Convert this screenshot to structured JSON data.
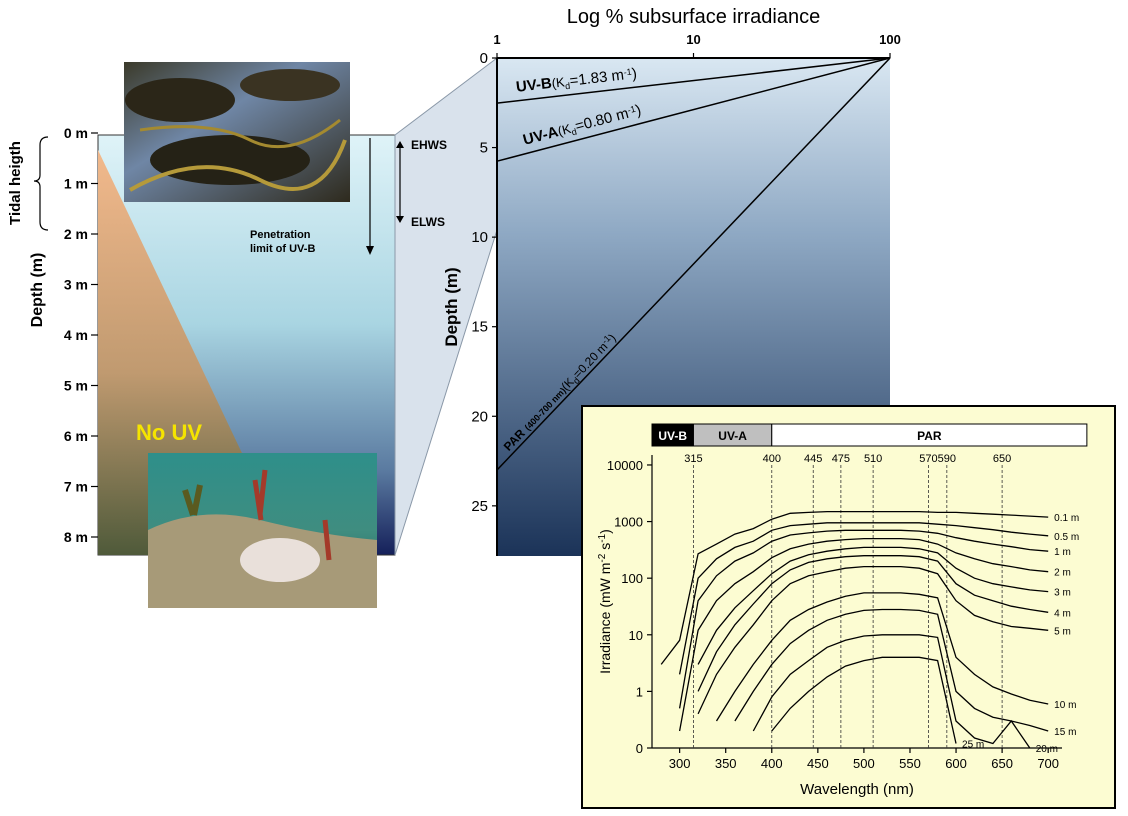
{
  "diagram": {
    "tidal_label": "Tidal heigth",
    "depth_label": "Depth (m)",
    "depth_ticks": [
      {
        "value": 0,
        "label": "0 m"
      },
      {
        "value": 1,
        "label": "1 m"
      },
      {
        "value": 2,
        "label": "2 m"
      },
      {
        "value": 3,
        "label": "3 m"
      },
      {
        "value": 4,
        "label": "4 m"
      },
      {
        "value": 5,
        "label": "5 m"
      },
      {
        "value": 6,
        "label": "6 m"
      },
      {
        "value": 7,
        "label": "7 m"
      },
      {
        "value": 8,
        "label": "8 m"
      }
    ],
    "ehws": "EHWS",
    "elws": "ELWS",
    "uvb_limit": [
      "Penetration",
      "limit of UV-B"
    ],
    "no_uv": "No UV"
  },
  "chart_data": [
    {
      "type": "line",
      "title": "Log % subsurface irradiance",
      "ylabel": "Depth (m)",
      "x_log": true,
      "x_axis_position": "top",
      "y_inverted": true,
      "x": [
        1,
        100
      ],
      "xlim": [
        1,
        100
      ],
      "xticks": [
        1,
        10,
        100
      ],
      "ylim": [
        0,
        27.8
      ],
      "yticks": [
        0,
        5,
        10,
        15,
        20,
        25
      ],
      "series": [
        {
          "name": "UV-B",
          "color": "#000000",
          "values": [
            2.52,
            0
          ],
          "label_parts": [
            "(K",
            "d",
            "=1.83 m",
            "-1",
            ")"
          ]
        },
        {
          "name": "UV-A",
          "color": "#000000",
          "values": [
            5.76,
            0
          ],
          "label_parts": [
            "(K",
            "d",
            "=0.80 m",
            "-1",
            ")"
          ]
        },
        {
          "name": "PAR",
          "color": "#000000",
          "values": [
            23,
            0
          ],
          "band_note": "(400-700 nm)",
          "label_parts": [
            "(K",
            "d",
            "=0.20 m",
            "-1",
            ")"
          ]
        }
      ]
    },
    {
      "type": "line",
      "xlabel": "Wavelength (nm)",
      "ylabel_parts": [
        "Irradiance (mW m",
        "-2",
        " s",
        "-1",
        ")"
      ],
      "y_log": true,
      "x": [
        280,
        300,
        320,
        340,
        360,
        380,
        400,
        420,
        440,
        460,
        480,
        500,
        520,
        540,
        560,
        580,
        600,
        620,
        640,
        660,
        680,
        700
      ],
      "xlim": [
        270,
        715
      ],
      "xticks": [
        300,
        350,
        400,
        450,
        500,
        550,
        600,
        650,
        700
      ],
      "ylim": [
        0.1,
        15000
      ],
      "yticks": [
        {
          "value": 0.1,
          "label": "0"
        },
        1,
        10,
        100,
        1000,
        10000
      ],
      "bands": [
        {
          "name": "UV-B",
          "range": [
            270,
            315
          ],
          "color": "#000000"
        },
        {
          "name": "UV-A",
          "range": [
            315,
            400
          ],
          "color": "#bfbfbf"
        },
        {
          "name": "PAR",
          "range": [
            400,
            742
          ],
          "color": "#ffffff"
        }
      ],
      "reference_lines": [
        315,
        400,
        445,
        475,
        510,
        570,
        590,
        650
      ],
      "series": [
        {
          "name": "0.1 m",
          "color": "#000000",
          "values": [
            3,
            8,
            270,
            400,
            600,
            750,
            1100,
            1400,
            1450,
            1500,
            1500,
            1500,
            1500,
            1500,
            1500,
            1450,
            1450,
            1400,
            1350,
            1300,
            1250,
            1200
          ]
        },
        {
          "name": "0.5 m",
          "color": "#000000",
          "values": [
            null,
            2,
            100,
            220,
            350,
            450,
            700,
            850,
            900,
            950,
            950,
            950,
            950,
            950,
            950,
            900,
            850,
            780,
            720,
            650,
            600,
            560
          ]
        },
        {
          "name": "1 m",
          "color": "#000000",
          "values": [
            null,
            0.5,
            40,
            110,
            200,
            280,
            450,
            580,
            630,
            680,
            700,
            700,
            700,
            700,
            680,
            620,
            520,
            450,
            400,
            360,
            320,
            300
          ]
        },
        {
          "name": "2 m",
          "color": "#000000",
          "values": [
            null,
            0.2,
            12,
            40,
            80,
            130,
            230,
            330,
            400,
            450,
            480,
            500,
            500,
            500,
            480,
            400,
            280,
            220,
            180,
            160,
            140,
            130
          ]
        },
        {
          "name": "3 m",
          "color": "#000000",
          "values": [
            null,
            null,
            3,
            12,
            30,
            60,
            120,
            200,
            260,
            300,
            330,
            350,
            350,
            350,
            330,
            280,
            150,
            100,
            80,
            70,
            62,
            58
          ]
        },
        {
          "name": "4 m",
          "color": "#000000",
          "values": [
            null,
            null,
            1,
            5,
            15,
            35,
            80,
            140,
            190,
            220,
            240,
            250,
            250,
            250,
            240,
            200,
            80,
            50,
            40,
            32,
            28,
            25
          ]
        },
        {
          "name": "5 m",
          "color": "#000000",
          "values": [
            null,
            null,
            0.4,
            2,
            6,
            15,
            40,
            80,
            110,
            130,
            150,
            160,
            160,
            160,
            150,
            120,
            40,
            22,
            17,
            14,
            13,
            12
          ]
        },
        {
          "name": "10 m",
          "color": "#000000",
          "values": [
            null,
            null,
            null,
            0.3,
            1,
            3,
            8,
            18,
            28,
            38,
            48,
            55,
            55,
            55,
            52,
            45,
            4,
            2,
            1.2,
            0.9,
            0.7,
            0.6
          ]
        },
        {
          "name": "15 m",
          "color": "#000000",
          "values": [
            null,
            null,
            null,
            null,
            0.3,
            1,
            3,
            7,
            12,
            18,
            23,
            27,
            28,
            28,
            27,
            23,
            1,
            0.5,
            0.35,
            0.3,
            0.25,
            0.2
          ]
        },
        {
          "name": "20 m",
          "color": "#000000",
          "values": [
            null,
            null,
            null,
            null,
            null,
            0.2,
            0.8,
            2,
            3.5,
            6,
            8,
            9.5,
            10,
            10,
            10,
            9,
            0.3,
            0.15,
            0.12,
            0.3,
            0.1,
            null
          ]
        },
        {
          "name": "25 m",
          "color": "#000000",
          "values": [
            null,
            null,
            null,
            null,
            null,
            null,
            0.2,
            0.5,
            1,
            1.8,
            2.8,
            3.5,
            4,
            4,
            4,
            3.5,
            0.12,
            null,
            null,
            null,
            null,
            null
          ]
        }
      ]
    }
  ]
}
